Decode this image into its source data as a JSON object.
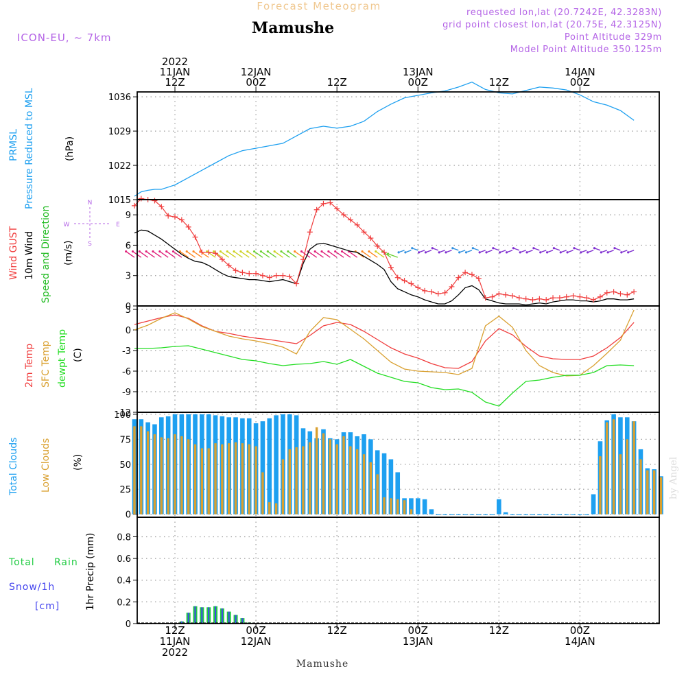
{
  "header": {
    "product_title": "Forecast Meteogram",
    "location": "Mamushe",
    "model": "ICON-EU, ~ 7km",
    "requested": "requested lon,lat (20.7242E, 42.3283N)",
    "grid_point": "grid point closest lon,lat (20.75E, 42.3125N)",
    "point_altitude": "Point Altitude 329m",
    "model_altitude": "Model Point Altitude 350.125m",
    "footer_location": "Mamushe",
    "watermark": "by Angel"
  },
  "colors": {
    "pressure": "#1ea0f0",
    "gust": "#f03c3c",
    "wind": "#000000",
    "wind_direction": "#22bb22",
    "temp2m": "#f03c3c",
    "sfc_temp": "#d9a030",
    "dewpoint": "#22dd22",
    "total_clouds": "#1ea0f0",
    "low_clouds": "#d9a030",
    "rain": "#22cc44",
    "snow": "#4444ee",
    "header_orange": "#f0c890",
    "header_purple": "#b464e6",
    "grid": "#999999"
  },
  "time_axis": {
    "top": [
      {
        "hour": 12,
        "lines": [
          "2022",
          "11JAN",
          "12Z"
        ]
      },
      {
        "hour": 24,
        "lines": [
          "12JAN",
          "00Z"
        ]
      },
      {
        "hour": 36,
        "lines": [
          "12Z"
        ]
      },
      {
        "hour": 48,
        "lines": [
          "13JAN",
          "00Z"
        ]
      },
      {
        "hour": 60,
        "lines": [
          "12Z"
        ]
      },
      {
        "hour": 72,
        "lines": [
          "14JAN",
          "00Z"
        ]
      }
    ],
    "bottom": [
      {
        "hour": 12,
        "lines": [
          "12Z",
          "11JAN",
          "2022"
        ]
      },
      {
        "hour": 24,
        "lines": [
          "00Z",
          "12JAN"
        ]
      },
      {
        "hour": 36,
        "lines": [
          "12Z"
        ]
      },
      {
        "hour": 48,
        "lines": [
          "00Z",
          "13JAN"
        ]
      },
      {
        "hour": 60,
        "lines": [
          "12Z"
        ]
      },
      {
        "hour": 72,
        "lines": [
          "00Z",
          "14JAN"
        ]
      }
    ]
  },
  "panels": {
    "pressure": {
      "labels": [
        "PRMSL",
        "Pressure Reduced to MSL"
      ],
      "unit": "(hPa)"
    },
    "wind": {
      "labels": [
        "Wind GUST",
        "10m Wind",
        "Speed and Direction"
      ],
      "unit": "(m/s)",
      "compass": [
        "N",
        "S",
        "W",
        "E"
      ]
    },
    "temp": {
      "labels": [
        "2m Temp",
        "SFC Temp",
        "dewpt Temp"
      ],
      "unit": "(C)"
    },
    "clouds": {
      "labels": [
        "Total Clouds",
        "Low Clouds"
      ],
      "unit": "(%)"
    },
    "precip": {
      "labels": [
        "Total",
        "Rain",
        "Snow/1h",
        "[cm]"
      ],
      "unit": "1hr Precip (mm)"
    }
  },
  "chart_data": [
    {
      "type": "line",
      "title": "",
      "ylabel": "(hPa)",
      "ylim": [
        1015,
        1037
      ],
      "yticks": [
        1015,
        1022,
        1029,
        1036
      ],
      "x_unit": "forecast hour (0 = 11JAN 00Z)",
      "series": [
        {
          "name": "PRMSL",
          "x": [
            6,
            7,
            8,
            9,
            10,
            12,
            14,
            16,
            18,
            20,
            22,
            24,
            26,
            28,
            30,
            32,
            34,
            36,
            38,
            40,
            42,
            44,
            46,
            48,
            50,
            52,
            54,
            56,
            58,
            60,
            62,
            64,
            66,
            68,
            70,
            72,
            74,
            76,
            78,
            80
          ],
          "values": [
            1015.7,
            1016.6,
            1016.9,
            1017.1,
            1017.1,
            1018.0,
            1019.5,
            1021.0,
            1022.5,
            1024.0,
            1025.0,
            1025.5,
            1026.0,
            1026.5,
            1028.0,
            1029.5,
            1030.0,
            1029.6,
            1030.0,
            1031.0,
            1033.0,
            1034.5,
            1035.8,
            1036.3,
            1036.8,
            1037.2,
            1038.0,
            1039.0,
            1037.5,
            1036.8,
            1036.6,
            1037.3,
            1038.0,
            1037.8,
            1037.4,
            1036.4,
            1035.0,
            1034.3,
            1033.2,
            1031.2
          ]
        }
      ]
    },
    {
      "type": "line",
      "title": "",
      "ylabel": "(m/s)",
      "ylim": [
        0,
        10.5
      ],
      "yticks": [
        0,
        3,
        6,
        9
      ],
      "series": [
        {
          "name": "Wind GUST",
          "x": [
            6,
            7,
            8,
            9,
            10,
            11,
            12,
            13,
            14,
            15,
            16,
            17,
            18,
            19,
            20,
            21,
            22,
            23,
            24,
            25,
            26,
            27,
            28,
            29,
            30,
            31,
            32,
            33,
            34,
            35,
            36,
            37,
            38,
            39,
            40,
            41,
            42,
            43,
            44,
            45,
            46,
            47,
            48,
            49,
            50,
            51,
            52,
            53,
            54,
            55,
            56,
            57,
            58,
            59,
            60,
            61,
            62,
            63,
            64,
            65,
            66,
            67,
            68,
            69,
            70,
            71,
            72,
            73,
            74,
            75,
            76,
            77,
            78,
            79,
            80
          ],
          "values": [
            9.9,
            10.6,
            10.5,
            10.4,
            9.8,
            8.9,
            8.8,
            8.5,
            7.8,
            6.8,
            5.3,
            5.3,
            5.2,
            4.6,
            4.0,
            3.5,
            3.3,
            3.2,
            3.2,
            3.0,
            2.8,
            3.0,
            3.0,
            2.9,
            2.2,
            4.6,
            7.3,
            9.5,
            10.1,
            10.2,
            9.6,
            9.0,
            8.5,
            8.0,
            7.3,
            6.7,
            5.9,
            5.3,
            3.8,
            2.8,
            2.5,
            2.2,
            1.8,
            1.5,
            1.4,
            1.2,
            1.3,
            1.9,
            2.8,
            3.3,
            3.1,
            2.7,
            0.8,
            0.9,
            1.2,
            1.1,
            1.0,
            0.8,
            0.7,
            0.6,
            0.7,
            0.6,
            0.8,
            0.8,
            0.9,
            1.0,
            0.9,
            0.8,
            0.6,
            0.9,
            1.3,
            1.4,
            1.2,
            1.1,
            1.4
          ]
        },
        {
          "name": "10m Wind",
          "x": [
            6,
            7,
            8,
            9,
            10,
            11,
            12,
            13,
            14,
            15,
            16,
            17,
            18,
            19,
            20,
            21,
            22,
            23,
            24,
            25,
            26,
            27,
            28,
            29,
            30,
            31,
            32,
            33,
            34,
            35,
            36,
            37,
            38,
            39,
            40,
            41,
            42,
            43,
            44,
            45,
            46,
            47,
            48,
            49,
            50,
            51,
            52,
            53,
            54,
            55,
            56,
            57,
            58,
            59,
            60,
            61,
            62,
            63,
            64,
            65,
            66,
            67,
            68,
            69,
            70,
            71,
            72,
            73,
            74,
            75,
            76,
            77,
            78,
            79,
            80
          ],
          "values": [
            7.2,
            7.5,
            7.4,
            7.0,
            6.6,
            6.1,
            5.6,
            5.1,
            4.7,
            4.4,
            4.3,
            4.0,
            3.6,
            3.2,
            2.9,
            2.8,
            2.7,
            2.6,
            2.6,
            2.5,
            2.4,
            2.5,
            2.6,
            2.4,
            2.2,
            4.2,
            5.6,
            6.1,
            6.2,
            6.0,
            5.8,
            5.6,
            5.4,
            5.3,
            4.9,
            4.5,
            4.1,
            3.6,
            2.4,
            1.7,
            1.4,
            1.1,
            0.9,
            0.6,
            0.4,
            0.2,
            0.2,
            0.5,
            1.1,
            1.8,
            2.0,
            1.6,
            0.7,
            0.5,
            0.3,
            0.2,
            0.2,
            0.2,
            0.1,
            0.2,
            0.3,
            0.2,
            0.4,
            0.5,
            0.6,
            0.6,
            0.5,
            0.5,
            0.4,
            0.5,
            0.7,
            0.7,
            0.6,
            0.6,
            0.7
          ]
        }
      ]
    },
    {
      "type": "line",
      "title": "",
      "ylabel": "(C)",
      "ylim": [
        -12,
        3.5
      ],
      "yticks": [
        -12,
        -9,
        -6,
        -3,
        0,
        3
      ],
      "series": [
        {
          "name": "2m Temp",
          "x": [
            6,
            8,
            10,
            12,
            14,
            16,
            18,
            20,
            22,
            24,
            26,
            28,
            30,
            32,
            34,
            36,
            38,
            40,
            42,
            44,
            46,
            48,
            50,
            52,
            54,
            56,
            58,
            60,
            62,
            64,
            66,
            68,
            70,
            72,
            74,
            76,
            78,
            80
          ],
          "values": [
            0.8,
            1.3,
            1.8,
            2.2,
            1.7,
            0.6,
            -0.2,
            -0.5,
            -0.9,
            -1.2,
            -1.4,
            -1.7,
            -2.0,
            -0.8,
            0.6,
            1.1,
            0.8,
            -0.2,
            -1.4,
            -2.6,
            -3.5,
            -4.1,
            -4.9,
            -5.5,
            -5.6,
            -4.6,
            -1.6,
            0.2,
            -0.7,
            -2.4,
            -3.8,
            -4.2,
            -4.3,
            -4.3,
            -3.8,
            -2.6,
            -1.1,
            1.1
          ]
        },
        {
          "name": "SFC Temp",
          "x": [
            6,
            8,
            10,
            12,
            14,
            16,
            18,
            20,
            22,
            24,
            26,
            28,
            30,
            32,
            34,
            36,
            38,
            40,
            42,
            44,
            46,
            48,
            50,
            52,
            54,
            56,
            58,
            60,
            62,
            64,
            66,
            68,
            70,
            72,
            74,
            76,
            78,
            80
          ],
          "values": [
            0.0,
            0.7,
            1.7,
            2.5,
            1.6,
            0.5,
            -0.2,
            -0.9,
            -1.3,
            -1.6,
            -2.0,
            -2.5,
            -3.5,
            -0.2,
            1.8,
            1.5,
            0.1,
            -1.3,
            -3.0,
            -4.7,
            -5.7,
            -6.0,
            -6.1,
            -6.2,
            -6.5,
            -5.6,
            0.6,
            2.0,
            0.4,
            -3.0,
            -5.2,
            -6.2,
            -6.7,
            -6.6,
            -5.2,
            -3.4,
            -1.5,
            2.9
          ]
        },
        {
          "name": "dewpt Temp",
          "x": [
            6,
            8,
            10,
            12,
            14,
            16,
            18,
            20,
            22,
            24,
            26,
            28,
            30,
            32,
            34,
            36,
            38,
            40,
            42,
            44,
            46,
            48,
            50,
            52,
            54,
            56,
            58,
            60,
            62,
            64,
            66,
            68,
            70,
            72,
            74,
            76,
            78,
            80
          ],
          "values": [
            -2.7,
            -2.7,
            -2.6,
            -2.4,
            -2.3,
            -2.8,
            -3.3,
            -3.8,
            -4.3,
            -4.5,
            -4.9,
            -5.2,
            -5.0,
            -4.9,
            -4.6,
            -5.0,
            -4.3,
            -5.3,
            -6.3,
            -6.9,
            -7.5,
            -7.7,
            -8.4,
            -8.7,
            -8.6,
            -9.1,
            -10.5,
            -11.1,
            -9.2,
            -7.5,
            -7.3,
            -6.9,
            -6.6,
            -6.6,
            -6.2,
            -5.2,
            -5.1,
            -5.2
          ]
        }
      ]
    },
    {
      "type": "bar",
      "title": "",
      "ylabel": "(%)",
      "ylim": [
        -3,
        102
      ],
      "yticks": [
        0,
        25,
        50,
        75,
        100
      ],
      "x_start_hour": 6,
      "series": [
        {
          "name": "Total Clouds",
          "values": [
            95,
            95,
            92,
            90,
            97,
            98,
            100,
            100,
            100,
            100,
            100,
            100,
            99,
            98,
            97,
            97,
            96,
            96,
            91,
            93,
            96,
            99,
            100,
            100,
            99,
            86,
            83,
            76,
            85,
            76,
            75,
            82,
            82,
            78,
            80,
            75,
            64,
            61,
            55,
            42,
            16,
            16,
            16,
            15,
            5,
            0,
            0,
            0,
            0,
            0,
            0,
            0,
            0,
            0,
            15,
            2,
            0,
            0,
            0,
            0,
            0,
            0,
            0,
            0,
            0,
            0,
            0,
            0,
            20,
            73,
            94,
            100,
            97,
            97,
            93,
            65,
            46,
            45,
            38
          ]
        },
        {
          "name": "Low Clouds",
          "values": [
            88,
            88,
            83,
            80,
            77,
            76,
            80,
            78,
            75,
            70,
            66,
            66,
            71,
            70,
            71,
            72,
            71,
            70,
            68,
            42,
            12,
            11,
            55,
            65,
            67,
            68,
            72,
            87,
            81,
            75,
            70,
            78,
            68,
            65,
            60,
            52,
            40,
            17,
            16,
            15,
            14,
            5,
            0,
            0,
            0,
            0,
            0,
            0,
            0,
            0,
            0,
            0,
            0,
            0,
            0,
            0,
            0,
            0,
            0,
            0,
            0,
            0,
            0,
            0,
            0,
            0,
            0,
            0,
            0,
            58,
            92,
            95,
            60,
            75,
            93,
            55,
            44,
            44,
            37
          ]
        }
      ]
    },
    {
      "type": "bar",
      "title": "",
      "ylabel": "1hr Precip (mm)",
      "ylim": [
        0,
        0.98
      ],
      "yticks": [
        0,
        0.2,
        0.4,
        0.6,
        0.8
      ],
      "series": [
        {
          "name": "Total Rain",
          "x": [
            13,
            14,
            15,
            16,
            17,
            18,
            19,
            20,
            21,
            22,
            23
          ],
          "values": [
            0.02,
            0.1,
            0.16,
            0.15,
            0.15,
            0.16,
            0.14,
            0.11,
            0.08,
            0.05,
            0.01
          ]
        }
      ]
    }
  ]
}
